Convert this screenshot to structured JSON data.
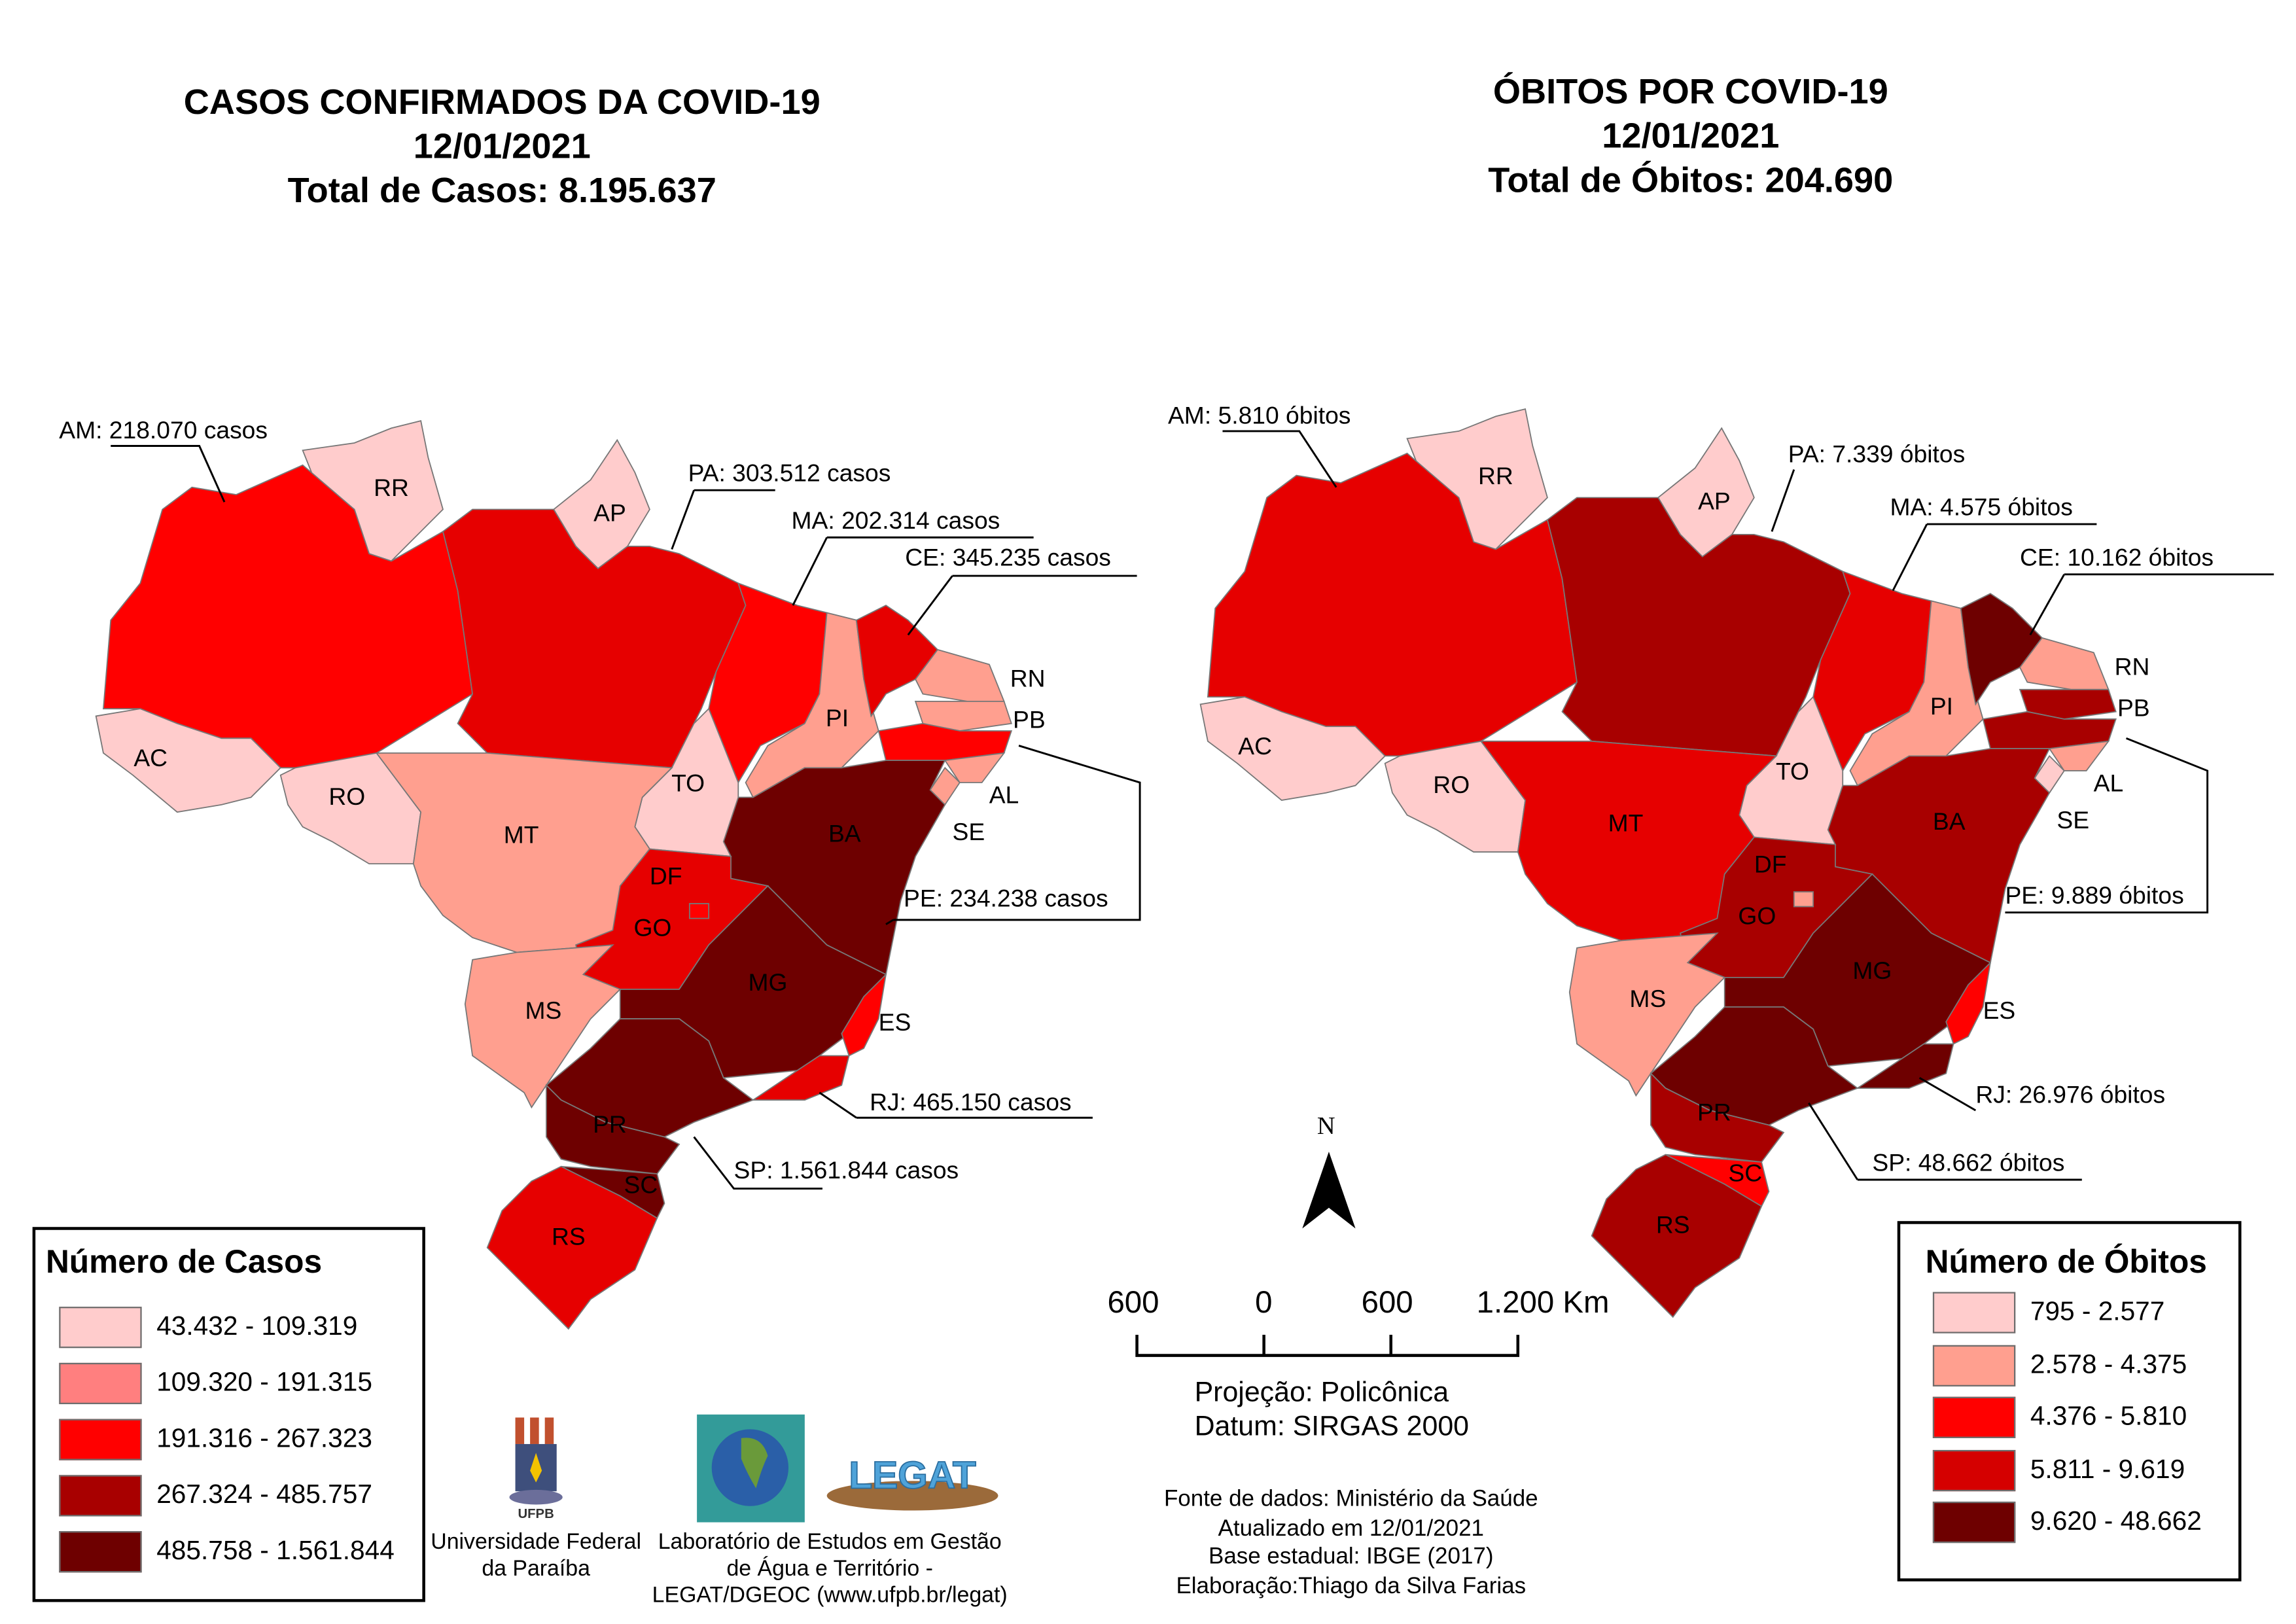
{
  "cases_map": {
    "title_lines": [
      "CASOS CONFIRMADOS DA COVID-19",
      "12/01/2021",
      "Total de Casos: 8.195.637"
    ],
    "legend": {
      "title": "Número de Casos",
      "classes": [
        {
          "label": "43.432 - 109.319",
          "color": "#ffcccc"
        },
        {
          "label": "109.320 - 191.315",
          "color": "#ff7f7f"
        },
        {
          "label": "191.316 - 267.323",
          "color": "#ff0000"
        },
        {
          "label": "267.324 - 485.757",
          "color": "#a80000"
        },
        {
          "label": "485.758 - 1.561.844",
          "color": "#6e0000"
        }
      ]
    },
    "state_colors": {
      "AM": "#ff0000",
      "RR": "#ffcccc",
      "AP": "#ffcccc",
      "PA": "#e60000",
      "MA": "#ff0000",
      "PI": "#ff9f8f",
      "CE": "#e60000",
      "RN": "#ff9f8f",
      "PB": "#ff9f8f",
      "PE": "#ff0000",
      "AL": "#ff9f8f",
      "SE": "#ff9f8f",
      "BA": "#6e0000",
      "TO": "#ffcccc",
      "MT": "#ff9f8f",
      "GO": "#e60000",
      "DF": "#ff0000",
      "MS": "#ff9f8f",
      "MG": "#6e0000",
      "ES": "#ff0000",
      "RJ": "#e60000",
      "SP": "#6e0000",
      "PR": "#6e0000",
      "SC": "#6e0000",
      "RS": "#e60000",
      "AC": "#ffcccc",
      "RO": "#ffcccc"
    },
    "callouts": {
      "AM": "AM: 218.070 casos",
      "PA": "PA: 303.512 casos",
      "MA": "MA: 202.314 casos",
      "CE": "CE: 345.235 casos",
      "PE": "PE: 234.238 casos",
      "RJ": "RJ: 465.150 casos",
      "SP": "SP: 1.561.844 casos"
    }
  },
  "deaths_map": {
    "title_lines": [
      "ÓBITOS POR COVID-19",
      "12/01/2021",
      "Total de Óbitos: 204.690"
    ],
    "legend": {
      "title": "Número de Óbitos",
      "classes": [
        {
          "label": "795 - 2.577",
          "color": "#ffcccc"
        },
        {
          "label": "2.578 - 4.375",
          "color": "#ff9f8f"
        },
        {
          "label": "4.376 - 5.810",
          "color": "#ff0000"
        },
        {
          "label": "5.811 - 9.619",
          "color": "#d50000"
        },
        {
          "label": "9.620 - 48.662",
          "color": "#6e0000"
        }
      ]
    },
    "state_colors": {
      "AM": "#e60000",
      "RR": "#ffcccc",
      "AP": "#ffcccc",
      "PA": "#a80000",
      "MA": "#e60000",
      "PI": "#ff9f8f",
      "CE": "#6e0000",
      "RN": "#ff9f8f",
      "PB": "#a80000",
      "PE": "#a80000",
      "AL": "#ff9f8f",
      "SE": "#ffcccc",
      "BA": "#a80000",
      "TO": "#ffcccc",
      "MT": "#e60000",
      "GO": "#a80000",
      "DF": "#ff9f8f",
      "MS": "#ff9f8f",
      "MG": "#6e0000",
      "ES": "#ff0000",
      "RJ": "#6e0000",
      "SP": "#6e0000",
      "PR": "#a80000",
      "SC": "#ff0000",
      "RS": "#a80000",
      "AC": "#ffcccc",
      "RO": "#ffcccc"
    },
    "callouts": {
      "AM": "AM: 5.810 óbitos",
      "PA": "PA: 7.339 óbitos",
      "MA": "MA: 4.575 óbitos",
      "CE": "CE: 10.162 óbitos",
      "PE": "PE: 9.889 óbitos",
      "RJ": "RJ: 26.976 óbitos",
      "SP": "SP: 48.662 óbitos"
    }
  },
  "states": [
    "RR",
    "AP",
    "AM",
    "AC",
    "RO",
    "PA",
    "MA",
    "PI",
    "CE",
    "RN",
    "PB",
    "PE",
    "AL",
    "SE",
    "BA",
    "TO",
    "MT",
    "GO",
    "DF",
    "MS",
    "MG",
    "ES",
    "RJ",
    "SP",
    "PR",
    "SC",
    "RS"
  ],
  "north_arrow": {
    "label": "N"
  },
  "scale_bar": {
    "labels": [
      "600",
      "0",
      "600",
      "1.200 Km"
    ]
  },
  "projection": {
    "line1": "Projeção: Policônica",
    "line2": "Datum: SIRGAS 2000"
  },
  "credits": [
    "Fonte de dados: Ministério da Saúde",
    "Atualizado em 12/01/2021",
    "Base estadual: IBGE (2017)",
    "Elaboração:Thiago da Silva Farias"
  ],
  "logos": {
    "ufpb": {
      "mark": "UFPB",
      "caption_lines": [
        "Universidade Federal",
        "da Paraíba"
      ]
    },
    "dgeoc": {
      "mark": "DGEOC - DEPARTAMENTO DE GEOCIÊNCIAS"
    },
    "legat": {
      "mark": "LEGAT",
      "caption_lines": [
        "Laboratório de Estudos em Gestão",
        "de Água e Território -",
        "LEGAT/DGEOC (www.ufpb.br/legat)"
      ]
    }
  }
}
